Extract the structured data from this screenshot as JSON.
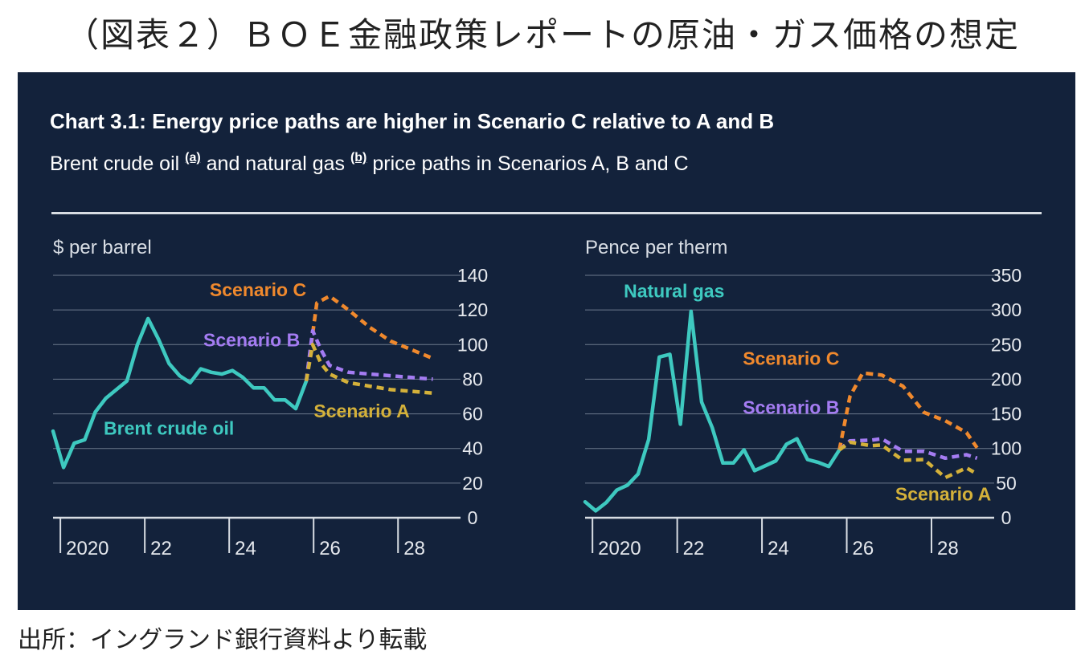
{
  "doc_title": "（図表２）ＢＯＥ金融政策レポートの原油・ガス価格の想定",
  "chart_title": "Chart 3.1: Energy price paths are higher in Scenario C relative to A and B",
  "subtitle": {
    "part1": "Brent crude oil ",
    "note_a": "(a)",
    "part2": " and natural gas ",
    "note_b": "(b)",
    "part3": " price paths in Scenarios A, B and C"
  },
  "source": "出所：イングランド銀行資料より転載",
  "colors": {
    "background": "#13223b",
    "history": "#3ec9c0",
    "scenario_a": "#d4b13a",
    "scenario_b": "#a47cf2",
    "scenario_c": "#f0892d",
    "text": "#ffffff",
    "axis": "#d8dde3",
    "grid": "#6c7a8c"
  },
  "chart_data": [
    {
      "type": "line",
      "ylabel": "$ per barrel",
      "ylim": [
        0,
        140
      ],
      "yticks": [
        0,
        20,
        40,
        60,
        80,
        100,
        120,
        140
      ],
      "xlim": [
        2019.75,
        2029.1
      ],
      "xticks": [
        2020,
        2022,
        2024,
        2026,
        2028
      ],
      "xtick_labels": [
        "2020",
        "22",
        "24",
        "26",
        "28"
      ],
      "grid": true,
      "series": [
        {
          "name": "Brent crude oil",
          "key": "history",
          "style": "solid",
          "points": [
            [
              2019.75,
              50
            ],
            [
              2020.0,
              29
            ],
            [
              2020.25,
              43
            ],
            [
              2020.5,
              45
            ],
            [
              2020.75,
              61
            ],
            [
              2021.0,
              69
            ],
            [
              2021.25,
              74
            ],
            [
              2021.5,
              79
            ],
            [
              2021.75,
              100
            ],
            [
              2022.0,
              115
            ],
            [
              2022.25,
              103
            ],
            [
              2022.5,
              89
            ],
            [
              2022.75,
              82
            ],
            [
              2023.0,
              78
            ],
            [
              2023.25,
              86
            ],
            [
              2023.5,
              84
            ],
            [
              2023.75,
              83
            ],
            [
              2024.0,
              85
            ],
            [
              2024.25,
              81
            ],
            [
              2024.5,
              75
            ],
            [
              2024.75,
              75
            ],
            [
              2025.0,
              68
            ],
            [
              2025.25,
              68
            ],
            [
              2025.5,
              63
            ],
            [
              2025.75,
              79
            ]
          ]
        },
        {
          "name": "Scenario C",
          "key": "scenario_c",
          "style": "dashed",
          "points": [
            [
              2025.75,
              79
            ],
            [
              2025.85,
              97
            ],
            [
              2026.0,
              124
            ],
            [
              2026.3,
              128
            ],
            [
              2026.75,
              120
            ],
            [
              2027.25,
              110
            ],
            [
              2027.75,
              102
            ],
            [
              2028.25,
              97
            ],
            [
              2028.75,
              92
            ]
          ]
        },
        {
          "name": "Scenario B",
          "key": "scenario_b",
          "style": "dashed",
          "points": [
            [
              2025.75,
              79
            ],
            [
              2025.9,
              108
            ],
            [
              2026.1,
              97
            ],
            [
              2026.3,
              88
            ],
            [
              2026.75,
              84
            ],
            [
              2027.25,
              83
            ],
            [
              2027.75,
              82
            ],
            [
              2028.25,
              81
            ],
            [
              2028.75,
              80
            ]
          ]
        },
        {
          "name": "Scenario A",
          "key": "scenario_a",
          "style": "dashed",
          "points": [
            [
              2025.75,
              79
            ],
            [
              2025.9,
              100
            ],
            [
              2026.1,
              89
            ],
            [
              2026.3,
              83
            ],
            [
              2026.75,
              78
            ],
            [
              2027.25,
              76
            ],
            [
              2027.75,
              74
            ],
            [
              2028.25,
              73
            ],
            [
              2028.75,
              72
            ]
          ]
        }
      ],
      "annotations": [
        {
          "text": "Scenario C",
          "key": "scenario_c",
          "x": 2025.75,
          "y": 128,
          "anchor": "end"
        },
        {
          "text": "Scenario B",
          "key": "scenario_b",
          "x": 2025.6,
          "y": 99,
          "anchor": "end"
        },
        {
          "text": "Scenario A",
          "key": "scenario_a",
          "x": 2028.2,
          "y": 58,
          "anchor": "end"
        },
        {
          "text": "Brent crude oil",
          "key": "history",
          "x": 2020.95,
          "y": 48,
          "anchor": "start"
        }
      ]
    },
    {
      "type": "line",
      "ylabel": "Pence per therm",
      "ylim": [
        0,
        350
      ],
      "yticks": [
        0,
        50,
        100,
        150,
        200,
        250,
        300,
        350
      ],
      "xlim": [
        2019.75,
        2029.1
      ],
      "xticks": [
        2020,
        2022,
        2024,
        2026,
        2028
      ],
      "xtick_labels": [
        "2020",
        "22",
        "24",
        "26",
        "28"
      ],
      "grid": true,
      "series": [
        {
          "name": "Natural gas",
          "key": "history",
          "style": "solid",
          "points": [
            [
              2019.75,
              23
            ],
            [
              2020.0,
              10
            ],
            [
              2020.25,
              22
            ],
            [
              2020.5,
              40
            ],
            [
              2020.75,
              47
            ],
            [
              2021.0,
              63
            ],
            [
              2021.25,
              113
            ],
            [
              2021.5,
              232
            ],
            [
              2021.75,
              236
            ],
            [
              2022.0,
              135
            ],
            [
              2022.25,
              298
            ],
            [
              2022.5,
              167
            ],
            [
              2022.75,
              130
            ],
            [
              2023.0,
              79
            ],
            [
              2023.25,
              79
            ],
            [
              2023.5,
              98
            ],
            [
              2023.75,
              68
            ],
            [
              2024.0,
              75
            ],
            [
              2024.25,
              82
            ],
            [
              2024.5,
              106
            ],
            [
              2024.75,
              114
            ],
            [
              2025.0,
              84
            ],
            [
              2025.25,
              80
            ],
            [
              2025.5,
              74
            ],
            [
              2025.75,
              98
            ]
          ]
        },
        {
          "name": "Scenario C",
          "key": "scenario_c",
          "style": "dashed",
          "points": [
            [
              2025.75,
              98
            ],
            [
              2026.0,
              175
            ],
            [
              2026.3,
              209
            ],
            [
              2026.75,
              206
            ],
            [
              2027.25,
              190
            ],
            [
              2027.75,
              152
            ],
            [
              2028.25,
              140
            ],
            [
              2028.75,
              123
            ],
            [
              2029.0,
              101
            ]
          ]
        },
        {
          "name": "Scenario B",
          "key": "scenario_b",
          "style": "dashed",
          "points": [
            [
              2025.75,
              98
            ],
            [
              2026.0,
              111
            ],
            [
              2026.5,
              112
            ],
            [
              2026.75,
              114
            ],
            [
              2027.25,
              96
            ],
            [
              2027.75,
              96
            ],
            [
              2028.25,
              86
            ],
            [
              2028.75,
              91
            ],
            [
              2029.0,
              86
            ]
          ]
        },
        {
          "name": "Scenario A",
          "key": "scenario_a",
          "style": "dashed",
          "points": [
            [
              2025.75,
              98
            ],
            [
              2026.0,
              109
            ],
            [
              2026.5,
              104
            ],
            [
              2026.75,
              105
            ],
            [
              2027.25,
              83
            ],
            [
              2027.75,
              84
            ],
            [
              2028.25,
              58
            ],
            [
              2028.75,
              72
            ],
            [
              2029.0,
              63
            ]
          ]
        }
      ],
      "annotations": [
        {
          "text": "Natural gas",
          "key": "history",
          "x": 2021.85,
          "y": 318,
          "anchor": "middle"
        },
        {
          "text": "Scenario C",
          "key": "scenario_c",
          "x": 2025.75,
          "y": 221,
          "anchor": "end"
        },
        {
          "text": "Scenario B",
          "key": "scenario_b",
          "x": 2025.75,
          "y": 150,
          "anchor": "end"
        },
        {
          "text": "Scenario A",
          "key": "scenario_a",
          "x": 2028.2,
          "y": 25,
          "anchor": "middle"
        }
      ]
    }
  ]
}
